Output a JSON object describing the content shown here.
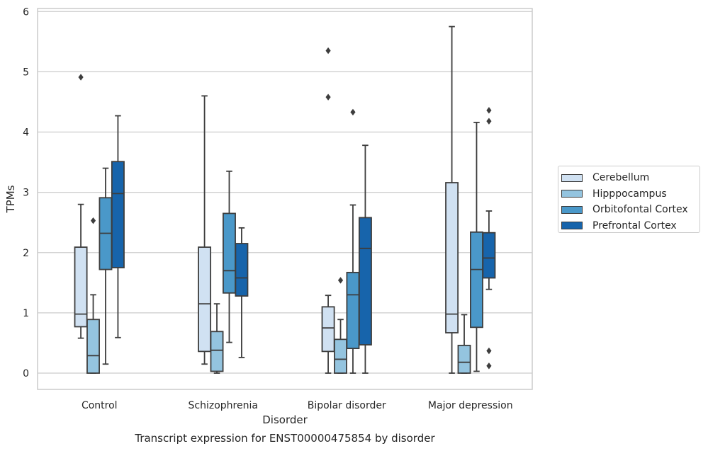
{
  "chart_data": {
    "type": "box",
    "title": "Transcript expression for ENST00000475854 by disorder",
    "xlabel": "Disorder",
    "ylabel": "TPMs",
    "ylim": [
      -0.27,
      6.05
    ],
    "yticks": [
      "0",
      "1",
      "2",
      "3",
      "4",
      "5",
      "6"
    ],
    "grid": "horizontal",
    "legend_position": "right",
    "categories": [
      "Control",
      "Schizophrenia",
      "Bipolar disorder",
      "Major depression"
    ],
    "series": [
      {
        "name": "Cerebellum",
        "color": "#d0e1f2",
        "boxes": [
          {
            "whislo": 0.58,
            "q1": 0.77,
            "med": 0.98,
            "q3": 2.09,
            "whishi": 2.8,
            "fliers": [
              4.91
            ]
          },
          {
            "whislo": 0.15,
            "q1": 0.36,
            "med": 1.15,
            "q3": 2.09,
            "whishi": 4.6,
            "fliers": []
          },
          {
            "whislo": 0.0,
            "q1": 0.36,
            "med": 0.75,
            "q3": 1.1,
            "whishi": 1.29,
            "fliers": [
              4.58,
              5.35
            ]
          },
          {
            "whislo": 0.0,
            "q1": 0.67,
            "med": 0.98,
            "q3": 3.16,
            "whishi": 5.75,
            "fliers": []
          }
        ]
      },
      {
        "name": "Hipppocampus",
        "color": "#94c4df",
        "boxes": [
          {
            "whislo": 0.0,
            "q1": 0.0,
            "med": 0.29,
            "q3": 0.89,
            "whishi": 1.3,
            "fliers": [
              2.53
            ]
          },
          {
            "whislo": 0.0,
            "q1": 0.03,
            "med": 0.38,
            "q3": 0.69,
            "whishi": 1.15,
            "fliers": []
          },
          {
            "whislo": 0.0,
            "q1": 0.0,
            "med": 0.23,
            "q3": 0.56,
            "whishi": 0.89,
            "fliers": [
              1.54
            ]
          },
          {
            "whislo": 0.0,
            "q1": 0.0,
            "med": 0.18,
            "q3": 0.46,
            "whishi": 0.97,
            "fliers": []
          }
        ]
      },
      {
        "name": "Orbitofontal Cortex",
        "color": "#4a98c9",
        "boxes": [
          {
            "whislo": 0.15,
            "q1": 1.72,
            "med": 2.32,
            "q3": 2.91,
            "whishi": 3.4,
            "fliers": []
          },
          {
            "whislo": 0.51,
            "q1": 1.33,
            "med": 1.7,
            "q3": 2.65,
            "whishi": 3.35,
            "fliers": []
          },
          {
            "whislo": 0.0,
            "q1": 0.41,
            "med": 1.3,
            "q3": 1.67,
            "whishi": 2.79,
            "fliers": [
              4.33
            ]
          },
          {
            "whislo": 0.03,
            "q1": 0.76,
            "med": 1.72,
            "q3": 2.34,
            "whishi": 4.16,
            "fliers": []
          }
        ]
      },
      {
        "name": "Prefrontal Cortex",
        "color": "#1764ab",
        "boxes": [
          {
            "whislo": 0.59,
            "q1": 1.75,
            "med": 2.98,
            "q3": 3.51,
            "whishi": 4.27,
            "fliers": []
          },
          {
            "whislo": 0.26,
            "q1": 1.28,
            "med": 1.58,
            "q3": 2.15,
            "whishi": 2.41,
            "fliers": []
          },
          {
            "whislo": 0.0,
            "q1": 0.47,
            "med": 2.07,
            "q3": 2.58,
            "whishi": 3.78,
            "fliers": []
          },
          {
            "whislo": 1.39,
            "q1": 1.58,
            "med": 1.91,
            "q3": 2.33,
            "whishi": 2.69,
            "fliers": [
              4.36,
              4.18,
              0.37,
              0.12
            ]
          }
        ]
      }
    ]
  }
}
